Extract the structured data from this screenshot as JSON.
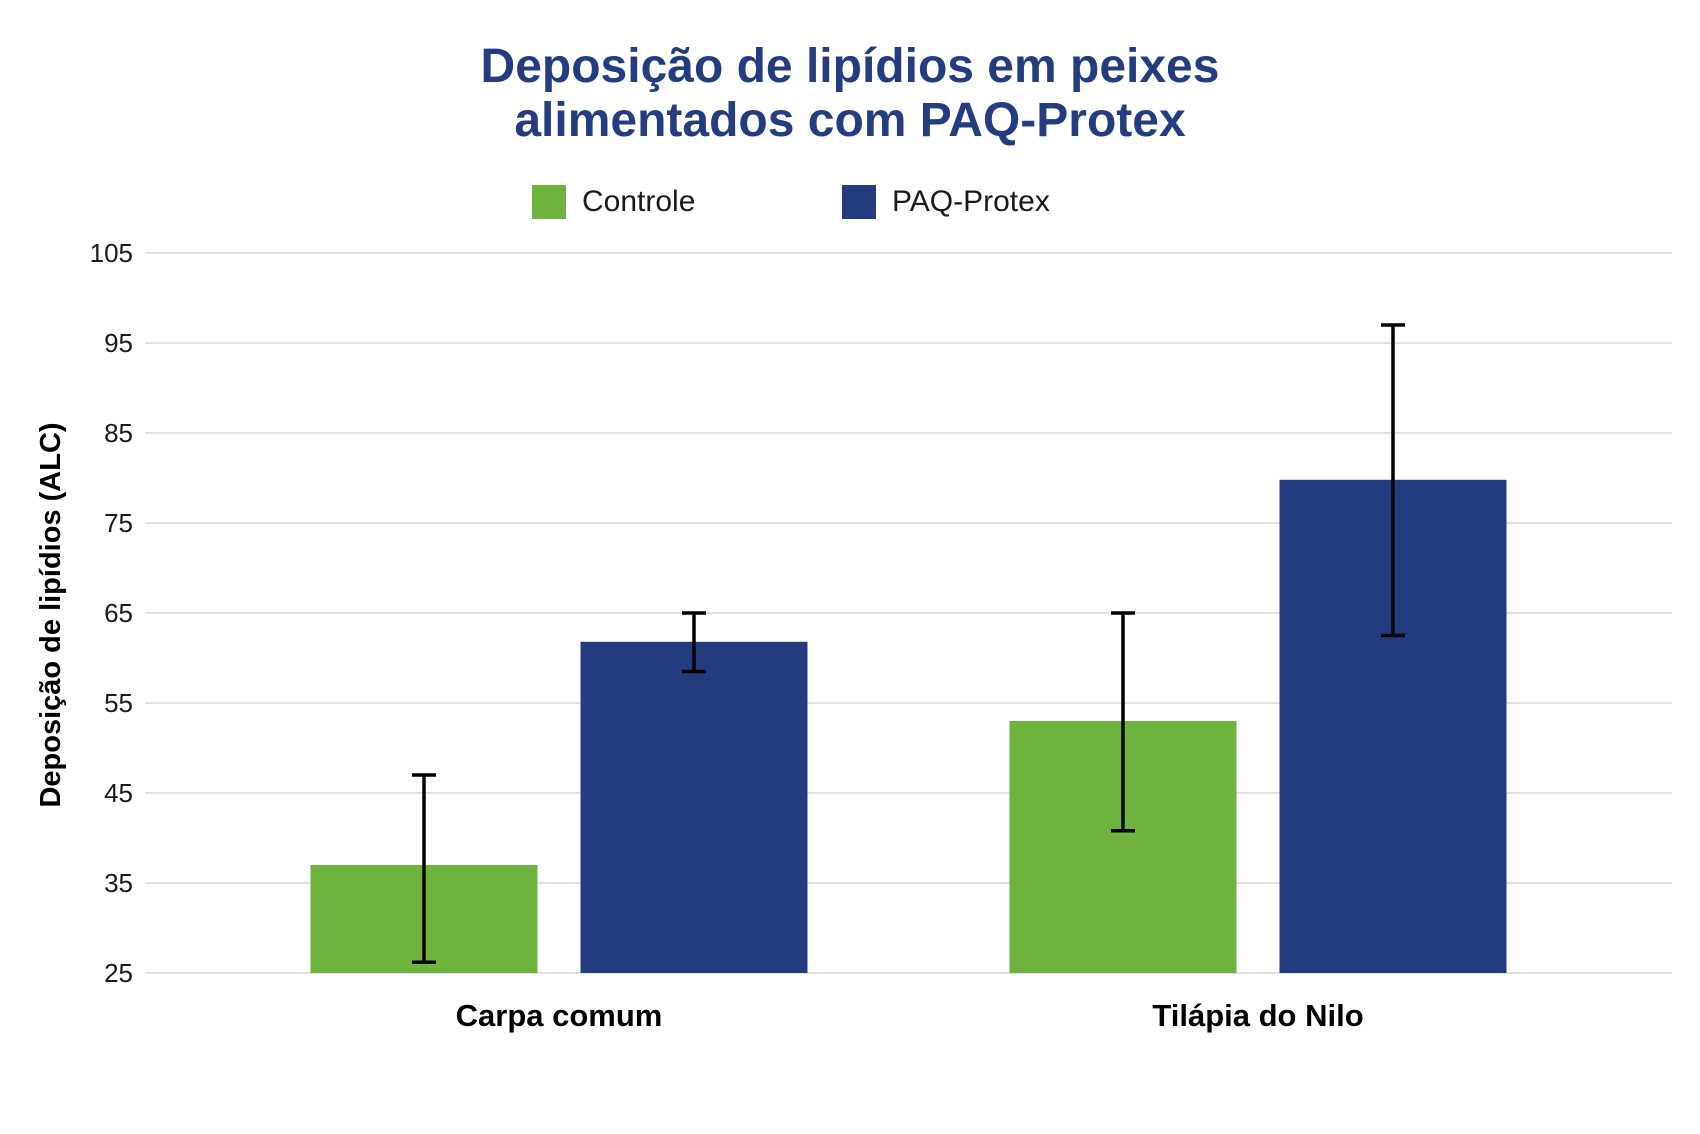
{
  "chart_data": {
    "type": "bar",
    "title_lines": [
      "Deposição de lipídios em peixes",
      "alimentados com PAQ-Protex"
    ],
    "ylabel": "Deposição de lipídios (ALC)",
    "xlabel": "",
    "categories": [
      "Carpa comum",
      "Tilápia do Nilo"
    ],
    "series": [
      {
        "name": "Controle",
        "color": "#6fb33f",
        "values": [
          37,
          53
        ],
        "error_low": [
          26.2,
          40.8
        ],
        "error_high": [
          47,
          65
        ]
      },
      {
        "name": "PAQ-Protex",
        "color": "#243c7f",
        "values": [
          61.8,
          79.8
        ],
        "error_low": [
          58.5,
          62.5
        ],
        "error_high": [
          65,
          97
        ]
      }
    ],
    "ylim": [
      25,
      105
    ],
    "yticks": [
      "25",
      "35",
      "45",
      "55",
      "65",
      "75",
      "85",
      "95",
      "105"
    ],
    "grid": true,
    "legend_position": "top-center"
  }
}
